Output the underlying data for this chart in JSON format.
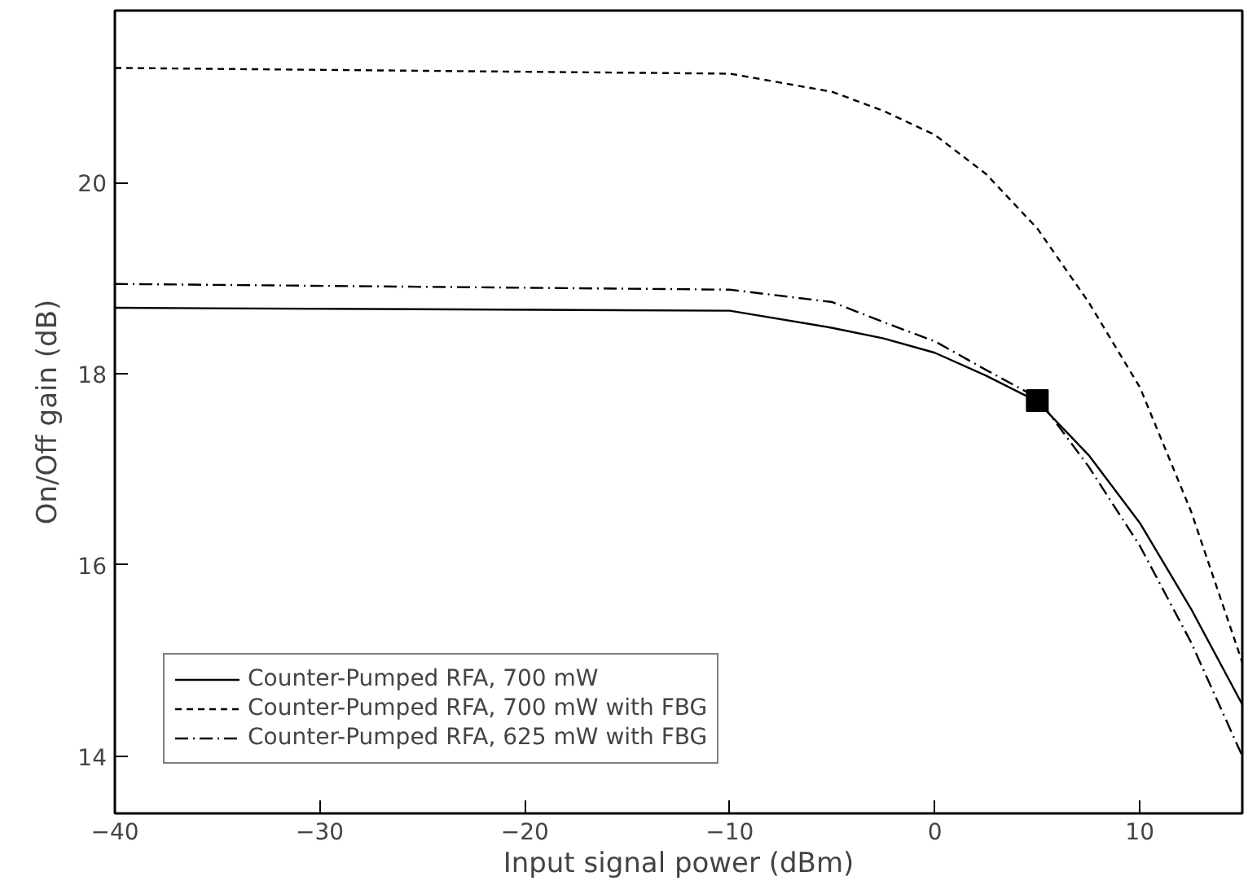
{
  "chart_data": {
    "type": "line",
    "xlabel": "Input signal power (dBm)",
    "ylabel": "On/Off gain (dB)",
    "xlim": [
      -40,
      15
    ],
    "xticks": [
      -40,
      -30,
      -20,
      -10,
      0,
      10
    ],
    "ylim": [
      13.4,
      21.8
    ],
    "yticks": [
      14,
      16,
      18,
      20
    ],
    "grid": false,
    "legend": "bottom left",
    "marker": "none",
    "x": [
      -40,
      -10,
      -5,
      -2.5,
      0,
      2.5,
      5,
      7.5,
      10,
      12.5,
      15
    ],
    "series": [
      {
        "name": "Counter-Pumped RFA, 700 mW",
        "color": "#000000",
        "line_style": "solid",
        "values": [
          18.69,
          18.66,
          18.48,
          18.37,
          18.22,
          17.98,
          17.71,
          17.15,
          16.44,
          15.54,
          14.54
        ]
      },
      {
        "name": "Counter-Pumped RFA, 700 mW with FBG",
        "color": "#000000",
        "line_style": "dashed",
        "values": [
          21.2,
          21.14,
          20.95,
          20.75,
          20.5,
          20.09,
          19.52,
          18.75,
          17.86,
          16.56,
          14.98
        ]
      },
      {
        "name": "Counter-Pumped RFA, 625 mW with FBG",
        "color": "#000000",
        "line_style": "dashdot",
        "values": [
          18.94,
          18.88,
          18.75,
          18.54,
          18.34,
          18.04,
          17.75,
          17.03,
          16.2,
          15.19,
          14.0
        ]
      },
      {
        "type": "scatter",
        "marker": "square",
        "color": "#000000",
        "x": [
          5
        ],
        "values": [
          17.72
        ]
      }
    ]
  }
}
